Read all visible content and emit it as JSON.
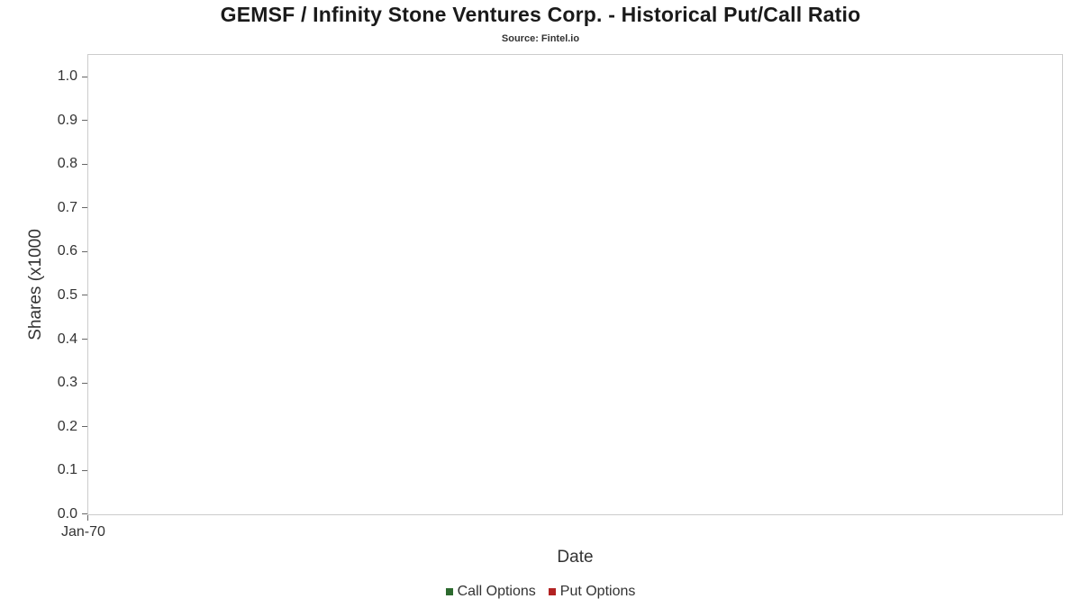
{
  "chart_data": {
    "type": "line",
    "title": "GEMSF / Infinity Stone Ventures Corp. - Historical Put/Call Ratio",
    "subtitle": "Source: Fintel.io",
    "xlabel": "Date",
    "ylabel": "Shares (x1000",
    "ylim": [
      0.0,
      1.0
    ],
    "grid": false,
    "legend_position": "bottom",
    "yticks": [
      "1.0",
      "0.9",
      "0.8",
      "0.7",
      "0.6",
      "0.5",
      "0.4",
      "0.3",
      "0.2",
      "0.1",
      "0.0"
    ],
    "xticks": [
      "Jan-70"
    ],
    "series": [
      {
        "name": "Call Options",
        "color": "#2d6a2f",
        "x": [],
        "values": []
      },
      {
        "name": "Put Options",
        "color": "#b22222",
        "x": [],
        "values": []
      }
    ]
  }
}
